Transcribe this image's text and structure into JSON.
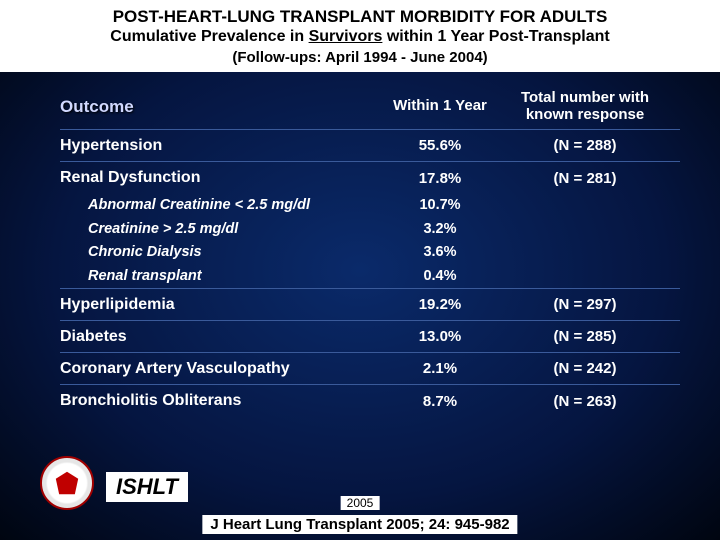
{
  "header": {
    "line1": "POST-HEART-LUNG TRANSPLANT MORBIDITY FOR ADULTS",
    "line2_pre": "Cumulative Prevalence in ",
    "line2_u": "Survivors",
    "line2_post": " within 1 Year Post-Transplant",
    "line3": "(Follow-ups: April 1994 - June 2004)"
  },
  "columns": {
    "c1": "Outcome",
    "c2": "Within 1 Year",
    "c3": "Total number with known response"
  },
  "rows": [
    {
      "label": "Hypertension",
      "pct": "55.6%",
      "n": "(N = 288)"
    },
    {
      "label": "Renal Dysfunction",
      "pct": "17.8%",
      "n": "(N = 281)",
      "sub": [
        {
          "label": "Abnormal Creatinine < 2.5 mg/dl",
          "pct": "10.7%"
        },
        {
          "label": "Creatinine > 2.5 mg/dl",
          "pct": "3.2%"
        },
        {
          "label": "Chronic Dialysis",
          "pct": "3.6%"
        },
        {
          "label": "Renal transplant",
          "pct": "0.4%"
        }
      ]
    },
    {
      "label": "Hyperlipidemia",
      "pct": "19.2%",
      "n": "(N = 297)"
    },
    {
      "label": "Diabetes",
      "pct": "13.0%",
      "n": "(N = 285)"
    },
    {
      "label": "Coronary Artery Vasculopathy",
      "pct": "2.1%",
      "n": "(N = 242)"
    },
    {
      "label": "Bronchiolitis Obliterans",
      "pct": "8.7%",
      "n": "(N = 263)"
    }
  ],
  "footer": {
    "society": "ISHLT",
    "year": "2005",
    "citation": "J Heart Lung Transplant 2005; 24: 945-982"
  }
}
